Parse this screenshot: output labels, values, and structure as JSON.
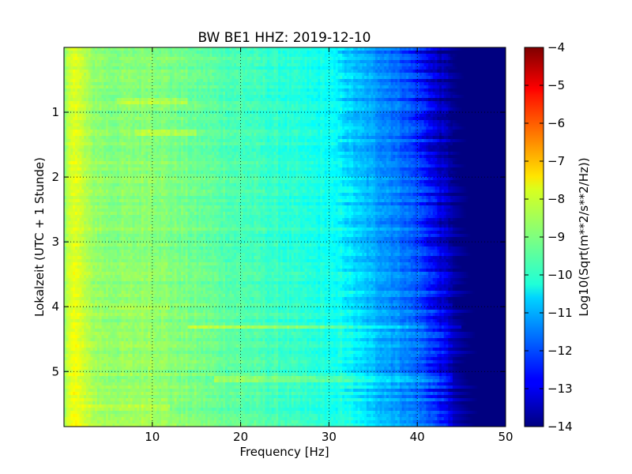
{
  "chart_data": {
    "type": "heatmap",
    "title": "BW BE1 HHZ: 2019-12-10",
    "xlabel": "Frequency [Hz]",
    "ylabel": "Lokalzeit (UTC + 1 Stunde)",
    "xlim": [
      0,
      50
    ],
    "ylim": [
      5.85,
      0.0
    ],
    "x_ticks": [
      10,
      20,
      30,
      40,
      50
    ],
    "x_tick_labels": [
      "10",
      "20",
      "30",
      "40",
      "50"
    ],
    "y_ticks": [
      1,
      2,
      3,
      4,
      5
    ],
    "y_tick_labels": [
      "1",
      "2",
      "3",
      "4",
      "5"
    ],
    "grid": true,
    "colormap": "jet",
    "colorbar": {
      "label": "Log10(Sqrt(m**2/s**2/Hz))",
      "min": -14,
      "max": -4,
      "ticks": [
        -4,
        -5,
        -6,
        -7,
        -8,
        -9,
        -10,
        -11,
        -12,
        -13,
        -14
      ],
      "tick_labels": [
        "−4",
        "−5",
        "−6",
        "−7",
        "−8",
        "−9",
        "−10",
        "−11",
        "−12",
        "−13",
        "−14"
      ]
    },
    "frequency_profile": {
      "x": [
        0,
        0.5,
        1,
        2,
        3,
        5,
        8,
        10,
        12,
        15,
        20,
        25,
        28,
        30,
        31,
        32,
        33,
        35,
        38,
        40,
        41,
        42,
        43,
        44,
        45,
        50
      ],
      "value": [
        -9.2,
        -8.4,
        -8.0,
        -8.4,
        -8.8,
        -9.0,
        -9.0,
        -8.9,
        -9.1,
        -9.3,
        -9.6,
        -9.9,
        -10.1,
        -10.2,
        -10.5,
        -10.8,
        -11.0,
        -11.3,
        -11.8,
        -12.4,
        -13.0,
        -13.4,
        -13.7,
        -14.0,
        -14.0,
        -14.0
      ]
    },
    "bright_lines": [
      {
        "time": 4.32,
        "f_start": 14,
        "f_end": 45,
        "delta": 0.8
      },
      {
        "time": 5.13,
        "f_start": 17,
        "f_end": 44,
        "delta": 0.7
      },
      {
        "time": 0.84,
        "f_start": 6,
        "f_end": 14,
        "delta": 0.5
      },
      {
        "time": 1.32,
        "f_start": 8,
        "f_end": 15,
        "delta": 0.4
      },
      {
        "time": 4.02,
        "f_start": 5,
        "f_end": 12,
        "delta": 0.4
      },
      {
        "time": 5.55,
        "f_start": 2,
        "f_end": 12,
        "delta": 0.4
      }
    ]
  }
}
